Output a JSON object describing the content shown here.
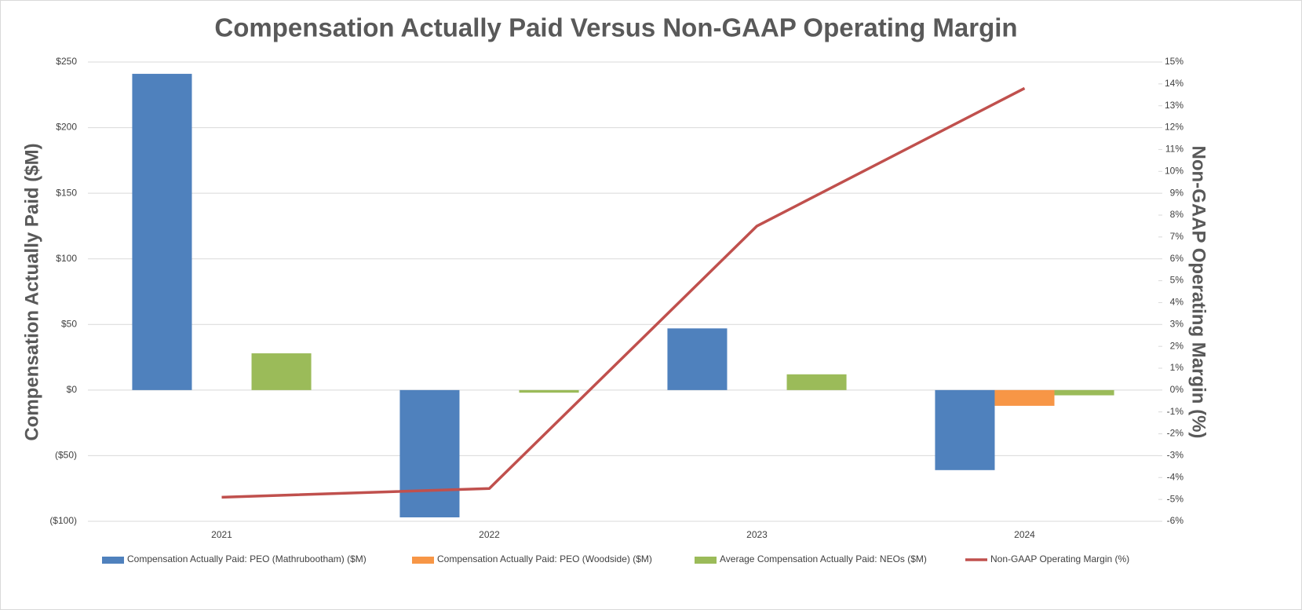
{
  "chart_data": {
    "type": "bar",
    "title": "Compensation Actually Paid Versus Non-GAAP Operating Margin",
    "y_label": "Compensation Actually Paid ($M)",
    "y2_label": "Non-GAAP Operating Margin (%)",
    "categories": [
      "2021",
      "2022",
      "2023",
      "2024"
    ],
    "series": [
      {
        "name": "Compensation Actually Paid: PEO (Mathrubootham) ($M)",
        "color": "#4f81bd",
        "type": "bar",
        "values": [
          241,
          -97,
          47,
          -61
        ]
      },
      {
        "name": "Compensation Actually Paid: PEO (Woodside) ($M)",
        "color": "#f79646",
        "type": "bar",
        "values": [
          null,
          null,
          null,
          -12
        ]
      },
      {
        "name": "Average Compensation Actually Paid: NEOs ($M)",
        "color": "#9bbb59",
        "type": "bar",
        "values": [
          28,
          -2,
          12,
          -4
        ]
      },
      {
        "name": "Non-GAAP Operating Margin (%)",
        "color": "#c0504d",
        "type": "line",
        "axis": "y2",
        "values": [
          -4.9,
          -4.5,
          7.5,
          13.8
        ]
      }
    ],
    "ylim": [
      -100,
      250
    ],
    "yticks": [
      {
        "value": -100,
        "label": "($100)"
      },
      {
        "value": -50,
        "label": "($50)"
      },
      {
        "value": 0,
        "label": "$0"
      },
      {
        "value": 50,
        "label": "$50"
      },
      {
        "value": 100,
        "label": "$100"
      },
      {
        "value": 150,
        "label": "$150"
      },
      {
        "value": 200,
        "label": "$200"
      },
      {
        "value": 250,
        "label": "$250"
      }
    ],
    "y2lim": [
      -6,
      15
    ],
    "y2ticks": [
      {
        "value": -6,
        "label": "-6%"
      },
      {
        "value": -5,
        "label": "-5%"
      },
      {
        "value": -4,
        "label": "-4%"
      },
      {
        "value": -3,
        "label": "-3%"
      },
      {
        "value": -2,
        "label": "-2%"
      },
      {
        "value": -1,
        "label": "-1%"
      },
      {
        "value": 0,
        "label": "0%"
      },
      {
        "value": 1,
        "label": "1%"
      },
      {
        "value": 2,
        "label": "2%"
      },
      {
        "value": 3,
        "label": "3%"
      },
      {
        "value": 4,
        "label": "4%"
      },
      {
        "value": 5,
        "label": "5%"
      },
      {
        "value": 6,
        "label": "6%"
      },
      {
        "value": 7,
        "label": "7%"
      },
      {
        "value": 8,
        "label": "8%"
      },
      {
        "value": 9,
        "label": "9%"
      },
      {
        "value": 10,
        "label": "10%"
      },
      {
        "value": 11,
        "label": "11%"
      },
      {
        "value": 12,
        "label": "12%"
      },
      {
        "value": 13,
        "label": "13%"
      },
      {
        "value": 14,
        "label": "14%"
      },
      {
        "value": 15,
        "label": "15%"
      }
    ],
    "grid": true,
    "legend": "bottom"
  }
}
